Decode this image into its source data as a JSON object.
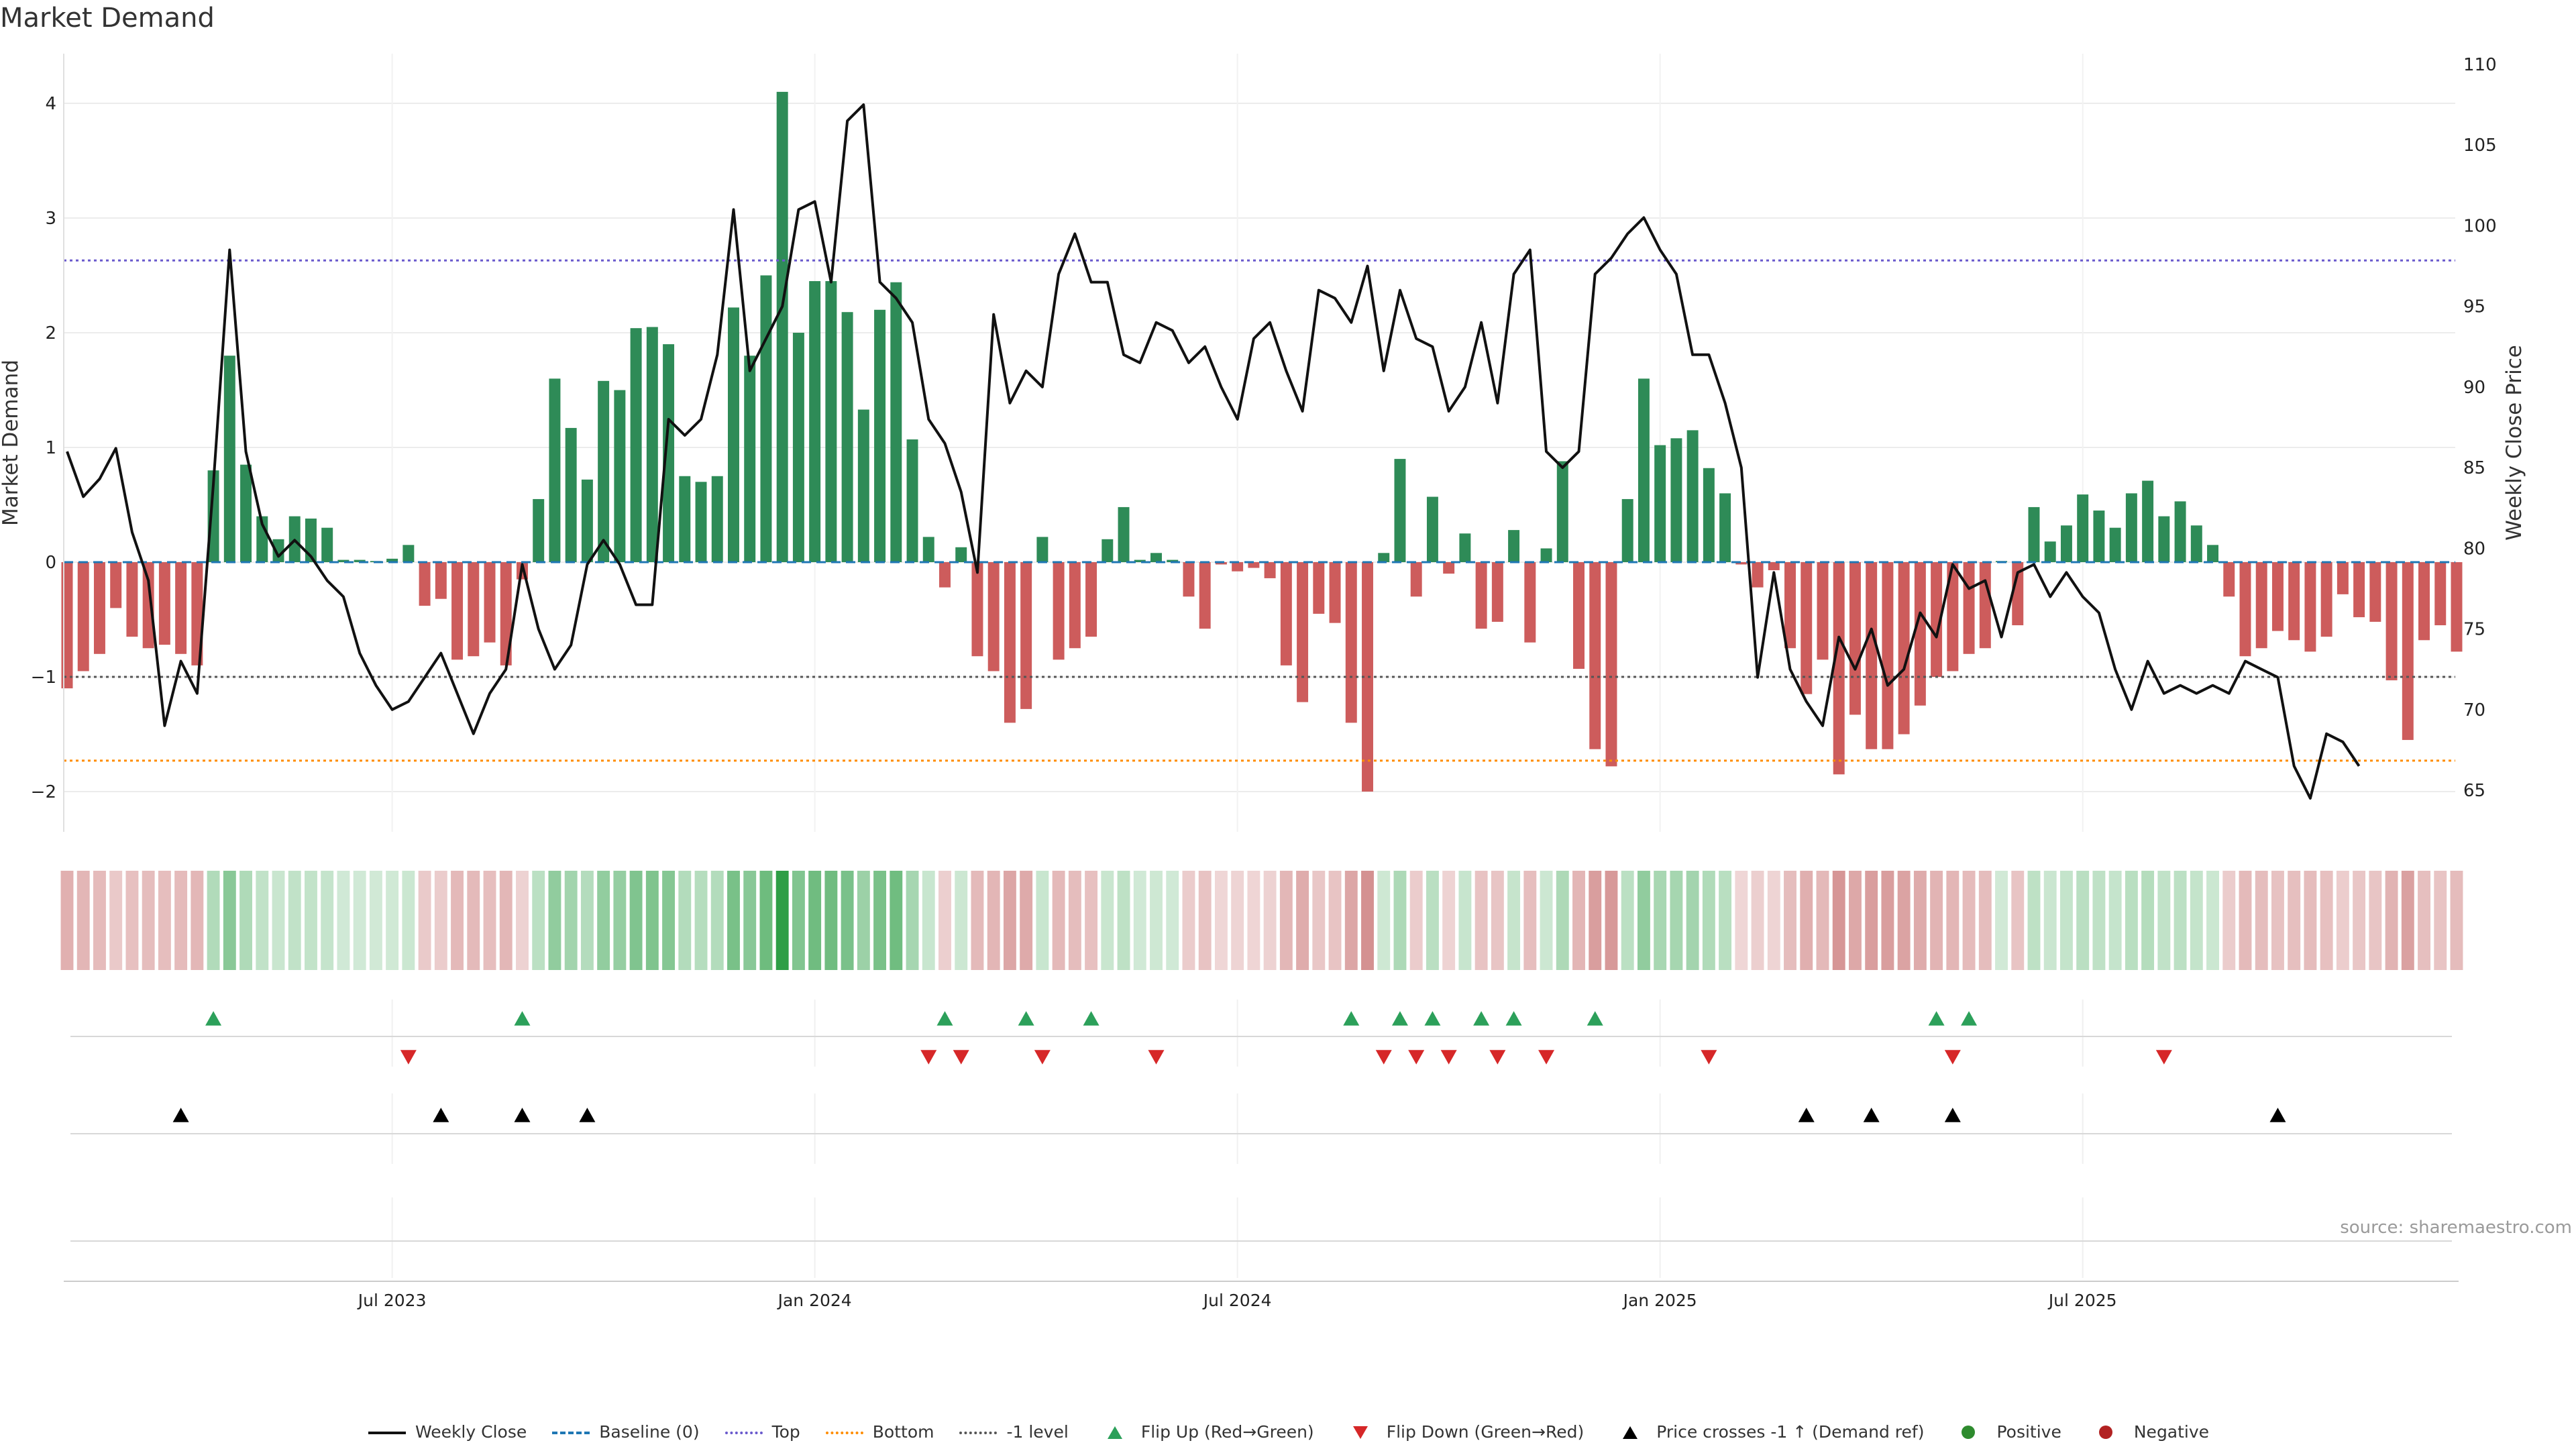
{
  "title": "Market Demand",
  "source": "source: sharemaestro.com",
  "colors": {
    "positive_bar": "#2e8b57",
    "negative_bar": "#cd5c5c",
    "price_line": "#111111",
    "baseline": "#1f77b4",
    "top": "#6a5acd",
    "bottom": "#ff8c00",
    "minus1": "#555555",
    "flip_up": "#2ca05a",
    "flip_down": "#d62728",
    "cross": "#000000",
    "positive_dot": "#2e8b2e",
    "negative_dot": "#b22222"
  },
  "chart_data": {
    "type": "bar",
    "title": "Market Demand",
    "ylabel": "Market Demand",
    "y2label": "Weekly Close Price",
    "ylim": [
      -2.35,
      4.45
    ],
    "y2lim": [
      62.5,
      111
    ],
    "yticks": [
      -2,
      -1,
      0,
      1,
      2,
      3,
      4
    ],
    "y2ticks": [
      65,
      70,
      75,
      80,
      85,
      90,
      95,
      100,
      105,
      110
    ],
    "ytick_labels": [
      "−2",
      "−1",
      "0",
      "1",
      "2",
      "3",
      "4"
    ],
    "y2tick_labels": [
      "65",
      "70",
      "75",
      "80",
      "85",
      "90",
      "95",
      "100",
      "105",
      "110"
    ],
    "reference_lines": {
      "baseline": 0,
      "top": 2.63,
      "bottom": -1.73,
      "minus1": -1.0
    },
    "x_ticks": [
      {
        "label": "Jul 2023",
        "index": 20
      },
      {
        "label": "Jan 2024",
        "index": 46
      },
      {
        "label": "Jul 2024",
        "index": 72
      },
      {
        "label": "Jan 2025",
        "index": 98
      },
      {
        "label": "Jul 2025",
        "index": 124
      }
    ],
    "demand": [
      -1.1,
      -0.95,
      -0.8,
      -0.4,
      -0.65,
      -0.75,
      -0.72,
      -0.8,
      -0.9,
      0.8,
      1.8,
      0.85,
      0.4,
      0.2,
      0.4,
      0.38,
      0.3,
      0.02,
      0.02,
      0.01,
      0.03,
      0.15,
      -0.38,
      -0.32,
      -0.85,
      -0.82,
      -0.7,
      -0.9,
      -0.15,
      0.55,
      1.6,
      1.17,
      0.72,
      1.58,
      1.5,
      2.04,
      2.05,
      1.9,
      0.75,
      0.7,
      0.75,
      2.22,
      1.8,
      2.5,
      4.1,
      2.0,
      2.45,
      2.45,
      2.18,
      1.33,
      2.2,
      2.44,
      1.07,
      0.22,
      -0.22,
      0.13,
      -0.82,
      -0.95,
      -1.4,
      -1.28,
      0.22,
      -0.85,
      -0.75,
      -0.65,
      0.2,
      0.48,
      0.02,
      0.08,
      0.02,
      -0.3,
      -0.58,
      -0.02,
      -0.08,
      -0.05,
      -0.14,
      -0.9,
      -1.22,
      -0.45,
      -0.53,
      -1.4,
      -2.0,
      0.08,
      0.9,
      -0.3,
      0.57,
      -0.1,
      0.25,
      -0.58,
      -0.52,
      0.28,
      -0.7,
      0.12,
      0.88,
      -0.93,
      -1.63,
      -1.78,
      0.55,
      1.6,
      1.02,
      1.08,
      1.15,
      0.82,
      0.6,
      -0.02,
      -0.22,
      -0.07,
      -0.75,
      -1.15,
      -0.85,
      -1.85,
      -1.33,
      -1.63,
      -1.63,
      -1.5,
      -1.25,
      -1.0,
      -0.95,
      -0.8,
      -0.75,
      0.01,
      -0.55,
      0.48,
      0.18,
      0.32,
      0.59,
      0.45,
      0.3,
      0.6,
      0.71,
      0.4,
      0.53,
      0.32,
      0.15,
      -0.3,
      -0.82,
      -0.75,
      -0.6,
      -0.68,
      -0.78,
      -0.65,
      -0.28,
      -0.48,
      -0.52,
      -1.03,
      -1.55,
      -0.68,
      -0.55,
      -0.78
    ],
    "weekly_close": [
      86.0,
      83.2,
      84.3,
      86.2,
      81.0,
      78.0,
      69.0,
      73.0,
      71.0,
      84.0,
      98.5,
      86.0,
      81.5,
      79.5,
      80.5,
      79.5,
      78.0,
      77.0,
      73.5,
      71.5,
      70.0,
      70.5,
      72.0,
      73.5,
      71.0,
      68.5,
      71.0,
      72.5,
      79.0,
      75.0,
      72.5,
      74.0,
      79.0,
      80.5,
      79.0,
      76.5,
      76.5,
      88.0,
      87.0,
      88.0,
      92.0,
      101.0,
      91.0,
      93.0,
      95.0,
      101.0,
      101.5,
      96.5,
      106.5,
      107.5,
      96.5,
      95.5,
      94.0,
      88.0,
      86.5,
      83.5,
      78.5,
      94.5,
      89.0,
      91.0,
      90.0,
      97.0,
      99.5,
      96.5,
      96.5,
      92.0,
      91.5,
      94.0,
      93.5,
      91.5,
      92.5,
      90.0,
      88.0,
      93.0,
      94.0,
      91.0,
      88.5,
      96.0,
      95.5,
      94.0,
      97.5,
      91.0,
      96.0,
      93.0,
      92.5,
      88.5,
      90.0,
      94.0,
      89.0,
      97.0,
      98.5,
      86.0,
      85.0,
      86.0,
      97.0,
      98.0,
      99.5,
      100.5,
      98.5,
      97.0,
      92.0,
      92.0,
      89.0,
      85.0,
      72.0,
      78.5,
      72.5,
      70.5,
      69.0,
      74.5,
      72.5,
      75.0,
      71.5,
      72.5,
      76.0,
      74.5,
      79.0,
      77.5,
      78.0,
      74.5,
      78.5,
      79.0,
      77.0,
      78.5,
      77.0,
      76.0,
      72.5,
      70.0,
      73.0,
      71.0,
      71.5,
      71.0,
      71.5,
      71.0,
      73.0,
      72.5,
      72.0,
      66.5,
      64.5,
      68.5,
      68.0,
      66.5
    ],
    "flip_up_indices": [
      9,
      28,
      54,
      59,
      63,
      79,
      82,
      84,
      87,
      89,
      94,
      115,
      117
    ],
    "flip_down_indices": [
      21,
      53,
      55,
      60,
      67,
      81,
      83,
      85,
      88,
      91,
      101,
      116,
      129
    ],
    "price_cross_indices": [
      7,
      23,
      28,
      32,
      107,
      111,
      116,
      136
    ],
    "legend": [
      {
        "label": "Weekly Close",
        "symbol": "solid-line",
        "color": "#111111"
      },
      {
        "label": "Baseline (0)",
        "symbol": "dashed-line",
        "color": "#1f77b4"
      },
      {
        "label": "Top",
        "symbol": "dotted-line",
        "color": "#6a5acd"
      },
      {
        "label": "Bottom",
        "symbol": "dotted-line",
        "color": "#ff8c00"
      },
      {
        "label": "-1 level",
        "symbol": "dotted-line",
        "color": "#555555"
      },
      {
        "label": "Flip Up (Red→Green)",
        "symbol": "triangle-up",
        "color": "#2ca05a"
      },
      {
        "label": "Flip Down (Green→Red)",
        "symbol": "triangle-down",
        "color": "#d62728"
      },
      {
        "label": "Price crosses -1 ↑ (Demand ref)",
        "symbol": "triangle-up",
        "color": "#000000"
      },
      {
        "label": "Positive",
        "symbol": "dot",
        "color": "#2e8b2e"
      },
      {
        "label": "Negative",
        "symbol": "dot",
        "color": "#b22222"
      }
    ]
  }
}
